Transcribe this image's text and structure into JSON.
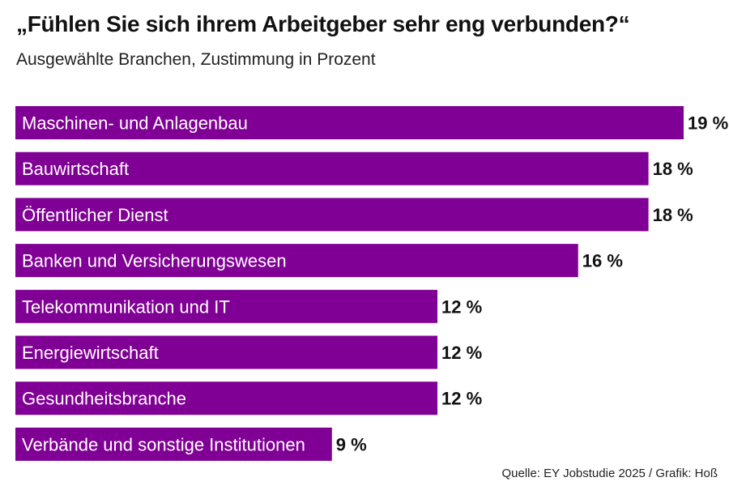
{
  "header": {
    "title": "„Fühlen Sie sich ihrem Arbeitgeber sehr eng verbunden?“",
    "subtitle": "Ausgewählte Branchen, Zustimmung in Prozent"
  },
  "footer": {
    "source": "Quelle: EY Jobstudie 2025 / Grafik: Hoß"
  },
  "colors": {
    "bar": "#800095",
    "bar_label": "#ffffff",
    "value_label": "#111111"
  },
  "chart_data": {
    "type": "bar",
    "orientation": "horizontal",
    "title": "„Fühlen Sie sich ihrem Arbeitgeber sehr eng verbunden?“",
    "subtitle": "Ausgewählte Branchen, Zustimmung in Prozent",
    "categories": [
      "Maschinen- und Anlagenbau",
      "Bauwirtschaft",
      "Öffentlicher Dienst",
      "Banken und Versicherungswesen",
      "Telekommunikation und IT",
      "Energiewirtschaft",
      "Gesundheitsbranche",
      "Verbände und sonstige Institutionen"
    ],
    "values": [
      19,
      18,
      18,
      16,
      12,
      12,
      12,
      9
    ],
    "value_labels": [
      "19 %",
      "18 %",
      "18 %",
      "16 %",
      "12 %",
      "12 %",
      "12 %",
      "9 %"
    ],
    "unit": "%",
    "xlim": [
      0,
      19
    ],
    "grid": false,
    "legend": "none"
  }
}
